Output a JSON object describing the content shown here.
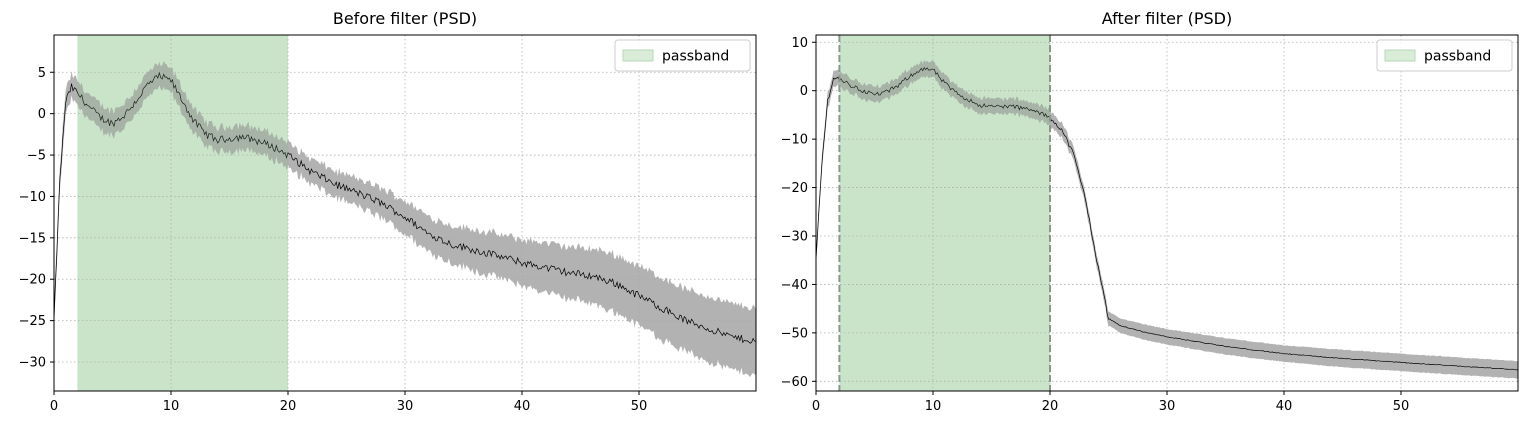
{
  "chart_data": [
    {
      "type": "line",
      "title": "Before filter (PSD)",
      "xlabel": "",
      "ylabel": "",
      "xlim": [
        0,
        60
      ],
      "ylim": [
        -33.5,
        9.5
      ],
      "xticks": [
        0,
        10,
        20,
        30,
        40,
        50
      ],
      "yticks": [
        5,
        0,
        -5,
        -10,
        -15,
        -20,
        -25,
        -30
      ],
      "grid": true,
      "legend": {
        "position": "top-right",
        "entries": [
          {
            "label": "passband",
            "color": "#d8ecd8"
          }
        ]
      },
      "passband": {
        "low": 2,
        "high": 20,
        "edge_lines": false
      },
      "series": [
        {
          "color": "#000000",
          "band_color": "#aaaaaa",
          "x": [
            0,
            0.5,
            1,
            1.5,
            2,
            3,
            4,
            5,
            6,
            7,
            8,
            9,
            10,
            11,
            12,
            13,
            14,
            15,
            16,
            17,
            18,
            19,
            20,
            22,
            24,
            26,
            28,
            30,
            32,
            34,
            36,
            38,
            40,
            42,
            44,
            46,
            48,
            50,
            52,
            54,
            56,
            58,
            60
          ],
          "y": [
            -25,
            -8,
            1.5,
            3.2,
            2.5,
            0.8,
            -0.5,
            -1.2,
            -0.2,
            1.5,
            3.5,
            4.5,
            4,
            1.5,
            -1,
            -2.5,
            -3.2,
            -3,
            -2.8,
            -3.1,
            -3.6,
            -4.2,
            -5,
            -7,
            -8.5,
            -9.6,
            -10.8,
            -12.5,
            -14.5,
            -15.8,
            -16.5,
            -17.2,
            -18,
            -18.6,
            -19.2,
            -19.6,
            -20.5,
            -22,
            -23.5,
            -25,
            -26,
            -27,
            -27.5
          ],
          "band_halfwidth": [
            1.5,
            1.5,
            1.5,
            1.5,
            1.5,
            1.5,
            1.5,
            1.5,
            1.5,
            1.5,
            1.5,
            1.5,
            1.5,
            1.5,
            1.5,
            1.5,
            1.5,
            1.5,
            1.5,
            1.5,
            1.5,
            1.5,
            1.5,
            1.5,
            1.6,
            1.7,
            1.8,
            2,
            2.1,
            2.3,
            2.5,
            2.6,
            2.8,
            3,
            3.1,
            3.3,
            3.5,
            3.6,
            3.7,
            3.8,
            3.9,
            4,
            4
          ]
        }
      ]
    },
    {
      "type": "line",
      "title": "After filter (PSD)",
      "xlabel": "",
      "ylabel": "",
      "xlim": [
        0,
        60
      ],
      "ylim": [
        -62,
        11.5
      ],
      "xticks": [
        0,
        10,
        20,
        30,
        40,
        50
      ],
      "yticks": [
        10,
        0,
        -10,
        -20,
        -30,
        -40,
        -50,
        -60
      ],
      "grid": true,
      "legend": {
        "position": "top-right",
        "entries": [
          {
            "label": "passband",
            "color": "#d8ecd8"
          }
        ]
      },
      "passband": {
        "low": 2,
        "high": 20,
        "edge_lines": true
      },
      "series": [
        {
          "color": "#000000",
          "band_color": "#aaaaaa",
          "x": [
            0,
            0.5,
            1,
            1.5,
            2,
            3,
            4,
            5,
            6,
            7,
            8,
            9,
            10,
            11,
            12,
            13,
            14,
            15,
            16,
            17,
            18,
            19,
            20,
            21,
            22,
            23,
            24,
            25,
            26,
            28,
            30,
            35,
            40,
            45,
            50,
            55,
            60
          ],
          "y": [
            -35,
            -15,
            -2,
            2.5,
            2.5,
            1,
            0,
            -0.8,
            -0.3,
            1,
            3,
            4.5,
            4.3,
            1.5,
            -0.5,
            -1.8,
            -3,
            -3.3,
            -3.2,
            -3.3,
            -3.8,
            -4.5,
            -5.5,
            -8,
            -13,
            -22,
            -35,
            -47,
            -48.5,
            -49.8,
            -50.8,
            -52.8,
            -54.3,
            -55.3,
            -56.1,
            -56.9,
            -57.6
          ],
          "band_halfwidth": [
            1.6,
            1.6,
            1.6,
            1.6,
            1.6,
            1.6,
            1.6,
            1.6,
            1.6,
            1.6,
            1.6,
            1.6,
            1.6,
            1.6,
            1.6,
            1.6,
            1.6,
            1.6,
            1.6,
            1.6,
            1.6,
            1.6,
            1.6,
            1.5,
            1.4,
            1.3,
            1.3,
            1.4,
            1.5,
            1.6,
            1.6,
            1.7,
            1.7,
            1.8,
            1.8,
            1.8,
            1.8
          ]
        }
      ]
    }
  ]
}
